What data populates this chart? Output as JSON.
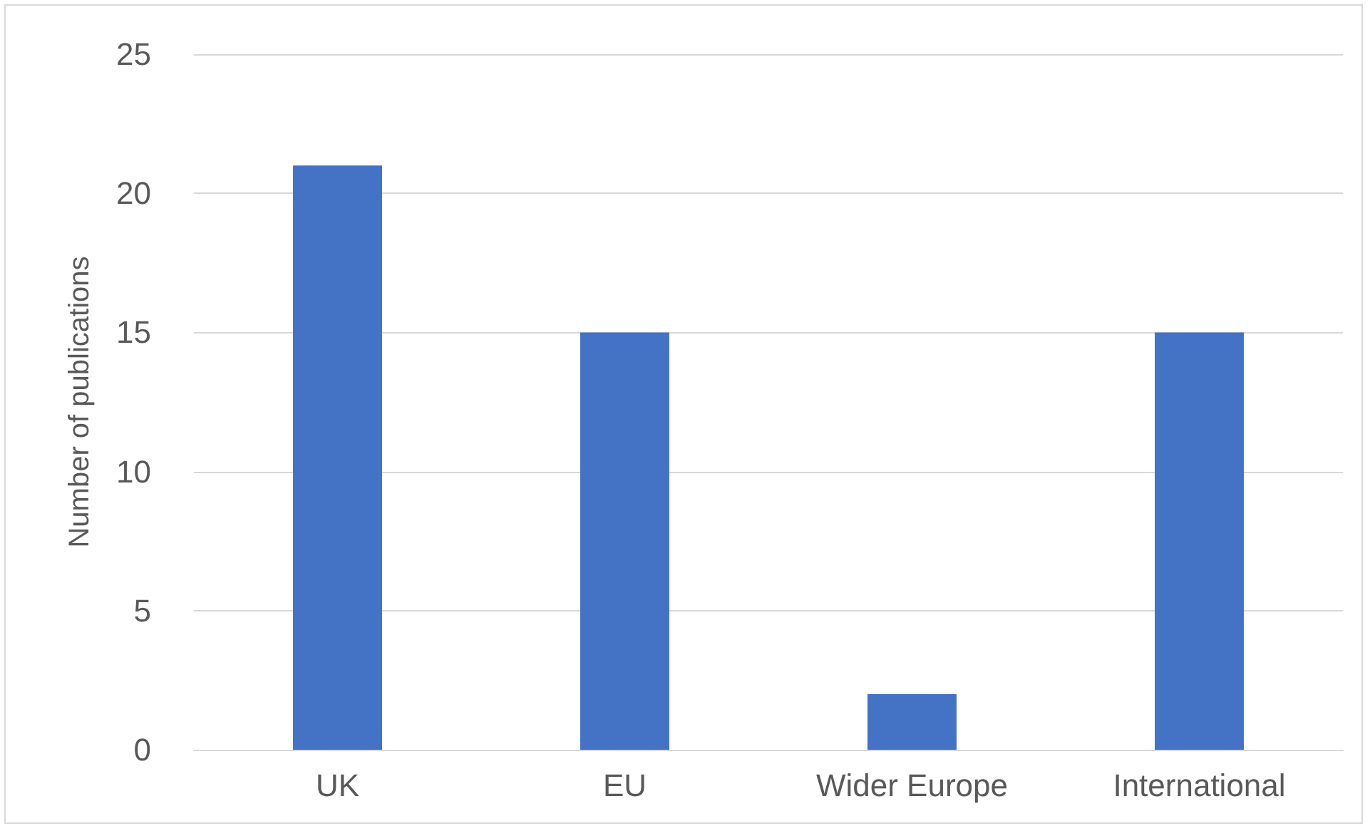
{
  "chart_data": {
    "type": "bar",
    "ylabel": "Number of publications",
    "categories": [
      "UK",
      "EU",
      "Wider Europe",
      "International"
    ],
    "values": [
      21,
      15,
      2,
      15
    ],
    "color": "#4472c4",
    "ylim": [
      0,
      25
    ],
    "yticks": [
      0,
      5,
      10,
      15,
      20,
      25
    ],
    "grid": "y"
  }
}
